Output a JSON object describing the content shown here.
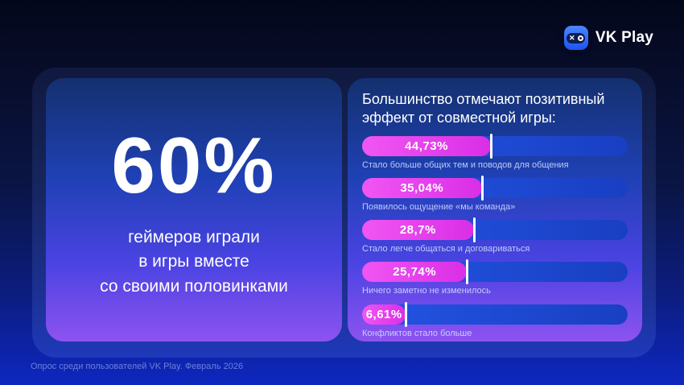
{
  "header": {
    "logo_text": "VK Play"
  },
  "left_card": {
    "stat_value": "60%",
    "stat_lines": [
      "геймеров играли",
      "в игры вместе",
      "со своими половинками"
    ]
  },
  "right_card": {
    "title_line1": "Большинство отмечают позитивный",
    "title_line2": "эффект от совместной игры:"
  },
  "chart_data": {
    "type": "bar",
    "orientation": "horizontal",
    "title": "Большинство отмечают позитивный эффект от совместной игры:",
    "categories": [
      "Стало больше общих тем и поводов для общения",
      "Появилось ощущение «мы команда»",
      "Стало легче общаться и договариваться",
      "Ничего заметно не изменилось",
      "Конфликтов стало больше"
    ],
    "values": [
      44.73,
      35.04,
      28.7,
      25.74,
      6.61
    ],
    "value_labels": [
      "44,73%",
      "35,04%",
      "28,7%",
      "25,74%",
      "6,61%"
    ],
    "fill_pct": [
      48.5,
      45.0,
      42.0,
      39.5,
      16.5
    ],
    "xlim": [
      0,
      100
    ],
    "legend": "none",
    "colors": {
      "fill": "#e33ae9",
      "track": "#1d4ad5",
      "marker": "#ffffff"
    }
  },
  "footer": {
    "source_note": "Опрос среди пользователей VK Play. Февраль 2026"
  }
}
